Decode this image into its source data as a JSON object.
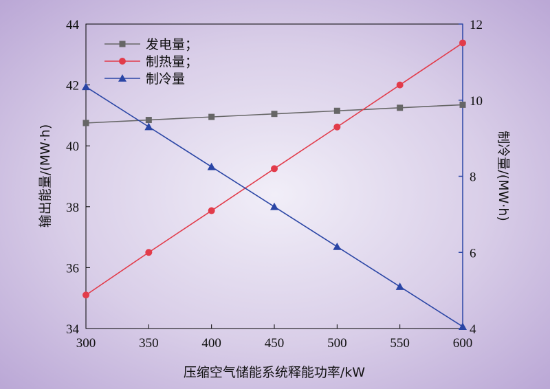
{
  "chart_data": {
    "type": "line",
    "title": "",
    "xlabel": "压缩空气储能系统释能功率/kW",
    "ylabel_left": "输出能量/(MW·h)",
    "ylabel_right": "制冷量/(MW·h)",
    "x": [
      300,
      350,
      400,
      450,
      500,
      550,
      600
    ],
    "xlim": [
      300,
      600
    ],
    "ylim_left": [
      34,
      44
    ],
    "ylim_right": [
      4,
      12
    ],
    "x_ticks": [
      "300",
      "350",
      "400",
      "450",
      "500",
      "550",
      "600"
    ],
    "y_left_ticks": [
      "34",
      "36",
      "38",
      "40",
      "42",
      "44"
    ],
    "y_right_ticks": [
      "4",
      "6",
      "8",
      "10",
      "12"
    ],
    "grid": false,
    "legend_position": "top-left",
    "background": "purple radial gradient",
    "series": [
      {
        "name": "发电量；",
        "axis": "left",
        "marker": "square",
        "color": "#666666",
        "values": [
          40.75,
          40.85,
          40.95,
          41.05,
          41.15,
          41.25,
          41.35
        ]
      },
      {
        "name": "制热量；",
        "axis": "left",
        "marker": "circle",
        "color": "#e23b4a",
        "values": [
          35.1,
          36.5,
          37.87,
          39.25,
          40.62,
          42.0,
          43.38
        ]
      },
      {
        "name": "制冷量",
        "axis": "right",
        "marker": "triangle",
        "color": "#2a45a5",
        "values": [
          10.35,
          9.3,
          8.25,
          7.2,
          6.15,
          5.1,
          4.05
        ]
      }
    ]
  }
}
